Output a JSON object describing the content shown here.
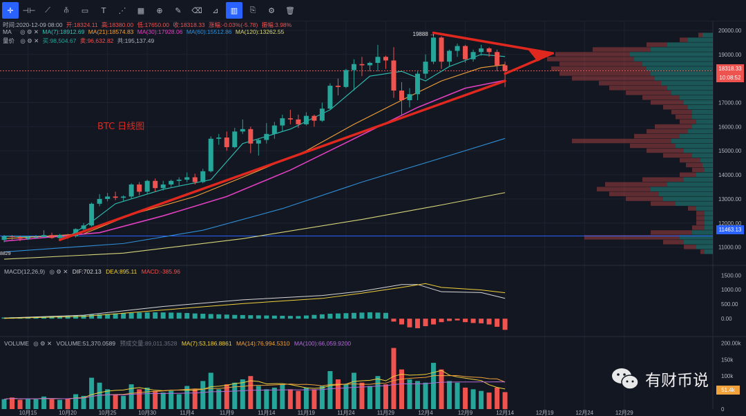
{
  "toolbar": {
    "icons": [
      "crosshair-icon",
      "hline-icon",
      "trendline-icon",
      "pitchfork-icon",
      "rectangle-icon",
      "text-icon",
      "pattern-icon",
      "ruler-icon",
      "zoom-icon",
      "brush-icon",
      "eraser-icon",
      "measure-icon",
      "bars-icon",
      "copy-icon",
      "settings-icon",
      "trash-icon"
    ]
  },
  "header": {
    "line1": {
      "time": "时间:2020-12-09 08:00",
      "open": "开:18324.11",
      "high": "高:18380.00",
      "low": "低:17650.00",
      "close": "收:18318.33",
      "change": "涨幅:-0.03%(-5.78)",
      "amplitude": "振幅:3.98%"
    },
    "ma_title": "MA",
    "ma": {
      "ma7": "MA(7):18912.69",
      "ma21": "MA(21):18574.83",
      "ma30": "MA(30):17928.06",
      "ma60": "MA(60):15512.86",
      "ma120": "MA(120):13262.55"
    },
    "vol_title": "量价",
    "vol": {
      "buy": "买:98,504.67",
      "sell": "卖:96,632.82",
      "total": "共:195,137.49"
    }
  },
  "annotation": "BTC  日线图",
  "price_labels": {
    "current": "18318.33",
    "countdown": "10:08:52",
    "level": "11463.13",
    "high_marker": "19888",
    "low_marker": "8829"
  },
  "macd": {
    "title": "MACD(12,26,9)",
    "dif": "DIF:702.13",
    "dea": "DEA:895.11",
    "macd": "MACD:-385.96"
  },
  "volume": {
    "title": "VOLUME",
    "value": "VOLUME:51,370.0589",
    "turnover": "预成交量:89,011.3528",
    "ma7": "MA(7):53,186.8861",
    "ma14": "MA(14):76,994.5310",
    "ma100": "MA(100):66,059.9200",
    "last_label": "51.4k"
  },
  "logo": "有财币说",
  "colors": {
    "up": "#26a69a",
    "down": "#ef5350",
    "bg": "#131722",
    "trend": "#e0281e",
    "ma7": "#2ec4b6",
    "ma21": "#f2a23a",
    "ma30": "#e040c0",
    "ma60": "#2f8fd8",
    "ma120": "#d7d77a"
  },
  "chart_data": [
    {
      "type": "candlestick",
      "title": "BTC  日线图",
      "x_labels": [
        "10月15",
        "10月20",
        "10月25",
        "10月30",
        "11月4",
        "11月9",
        "11月14",
        "11月19",
        "11月24",
        "11月29",
        "12月4",
        "12月9",
        "12月14",
        "12月19",
        "12月24",
        "12月29"
      ],
      "y_ticks": [
        11000,
        12000,
        13000,
        14000,
        15000,
        16000,
        17000,
        18000,
        19000,
        20000
      ],
      "ylim": [
        10300,
        20400
      ],
      "start_date": "2020-10-12",
      "candles": [
        [
          11300,
          11500,
          11200,
          11450
        ],
        [
          11450,
          11500,
          11300,
          11420
        ],
        [
          11420,
          11480,
          11250,
          11350
        ],
        [
          11350,
          11450,
          11300,
          11400
        ],
        [
          11400,
          11500,
          11350,
          11420
        ],
        [
          11420,
          11700,
          11400,
          11500
        ],
        [
          11500,
          11600,
          11350,
          11380
        ],
        [
          11380,
          11550,
          11300,
          11500
        ],
        [
          11500,
          11550,
          11350,
          11450
        ],
        [
          11450,
          11780,
          11400,
          11750
        ],
        [
          11750,
          12000,
          11650,
          11900
        ],
        [
          11900,
          12850,
          11850,
          12800
        ],
        [
          12800,
          13200,
          12700,
          13000
        ],
        [
          13000,
          13250,
          12900,
          13100
        ],
        [
          13100,
          13300,
          12950,
          13050
        ],
        [
          13050,
          13150,
          12900,
          13100
        ],
        [
          13100,
          13650,
          13000,
          13600
        ],
        [
          13600,
          13700,
          13150,
          13300
        ],
        [
          13300,
          13800,
          13200,
          13750
        ],
        [
          13750,
          13850,
          13300,
          13450
        ],
        [
          13450,
          13750,
          13350,
          13600
        ],
        [
          13600,
          13800,
          13500,
          13750
        ],
        [
          13750,
          13900,
          13550,
          13800
        ],
        [
          13800,
          14100,
          13700,
          13900
        ],
        [
          13900,
          14050,
          13600,
          13700
        ],
        [
          13700,
          14250,
          13650,
          14150
        ],
        [
          14150,
          15600,
          14100,
          15500
        ],
        [
          15500,
          15700,
          15250,
          15550
        ],
        [
          15550,
          15800,
          15000,
          15150
        ],
        [
          15150,
          15950,
          15100,
          15800
        ],
        [
          15800,
          16300,
          15700,
          15900
        ],
        [
          15900,
          16000,
          14900,
          15300
        ],
        [
          15300,
          15500,
          14800,
          15450
        ],
        [
          15450,
          16150,
          15300,
          15700
        ],
        [
          15700,
          16200,
          15500,
          16050
        ],
        [
          16050,
          16500,
          15800,
          16350
        ],
        [
          16350,
          16700,
          16100,
          16300
        ],
        [
          16300,
          16500,
          15950,
          16100
        ],
        [
          16100,
          16600,
          16050,
          16450
        ],
        [
          16450,
          16500,
          16000,
          16250
        ],
        [
          16250,
          17000,
          16200,
          16750
        ],
        [
          16750,
          17800,
          16700,
          17700
        ],
        [
          17700,
          18000,
          17300,
          17650
        ],
        [
          17650,
          18400,
          17600,
          18350
        ],
        [
          18350,
          18800,
          17500,
          18600
        ],
        [
          18600,
          18900,
          18100,
          18550
        ],
        [
          18550,
          18700,
          18300,
          18650
        ],
        [
          18650,
          19400,
          18300,
          18900
        ],
        [
          18900,
          18950,
          18400,
          18750
        ],
        [
          18750,
          19300,
          17200,
          17500
        ],
        [
          17500,
          17850,
          16500,
          17100
        ],
        [
          17100,
          17600,
          16800,
          17350
        ],
        [
          17350,
          18300,
          17100,
          18200
        ],
        [
          18200,
          19000,
          18000,
          18700
        ],
        [
          18700,
          19888,
          18600,
          19700
        ],
        [
          19700,
          19750,
          18400,
          18700
        ],
        [
          18700,
          19200,
          18500,
          19150
        ],
        [
          19150,
          19450,
          18900,
          19350
        ],
        [
          19350,
          19400,
          18650,
          18800
        ],
        [
          18800,
          19200,
          18700,
          19100
        ],
        [
          19100,
          19400,
          18950,
          19250
        ],
        [
          19250,
          19300,
          18900,
          19100
        ],
        [
          19100,
          19200,
          18300,
          18550
        ],
        [
          18550,
          18700,
          17650,
          18318
        ]
      ],
      "ma_series": [
        {
          "name": "MA(7)",
          "color": "#2ec4b6",
          "values": [
            [
              0,
              11450
            ],
            [
              8,
              11420
            ],
            [
              11,
              12050
            ],
            [
              14,
              12800
            ],
            [
              20,
              13400
            ],
            [
              26,
              13800
            ],
            [
              30,
              15300
            ],
            [
              36,
              15900
            ],
            [
              41,
              16700
            ],
            [
              46,
              18100
            ],
            [
              50,
              18300
            ],
            [
              53,
              17900
            ],
            [
              56,
              18500
            ],
            [
              60,
              19000
            ],
            [
              63,
              18912
            ]
          ]
        },
        {
          "name": "MA(21)",
          "color": "#f2a23a",
          "values": [
            [
              0,
              11350
            ],
            [
              10,
              11550
            ],
            [
              16,
              12350
            ],
            [
              24,
              13100
            ],
            [
              30,
              13900
            ],
            [
              38,
              15000
            ],
            [
              44,
              16100
            ],
            [
              50,
              17100
            ],
            [
              55,
              17900
            ],
            [
              60,
              18450
            ],
            [
              63,
              18575
            ]
          ]
        },
        {
          "name": "MA(30)",
          "color": "#e040c0",
          "values": [
            [
              0,
              11250
            ],
            [
              12,
              11600
            ],
            [
              20,
              12300
            ],
            [
              28,
              13100
            ],
            [
              36,
              14200
            ],
            [
              44,
              15500
            ],
            [
              52,
              16800
            ],
            [
              58,
              17600
            ],
            [
              63,
              17928
            ]
          ]
        },
        {
          "name": "MA(60)",
          "color": "#2f8fd8",
          "values": [
            [
              0,
              10800
            ],
            [
              15,
              11150
            ],
            [
              25,
              11700
            ],
            [
              35,
              12600
            ],
            [
              45,
              13700
            ],
            [
              55,
              14700
            ],
            [
              63,
              15513
            ]
          ]
        },
        {
          "name": "MA(120)",
          "color": "#d7d77a",
          "values": [
            [
              0,
              10500
            ],
            [
              15,
              10750
            ],
            [
              30,
              11350
            ],
            [
              45,
              12150
            ],
            [
              55,
              12750
            ],
            [
              63,
              13263
            ]
          ]
        }
      ],
      "trendlines": [
        {
          "from": [
            7,
            11300
          ],
          "to": [
            63,
            17900
          ]
        },
        {
          "from": [
            54,
            19900
          ],
          "to": [
            69,
            19050
          ]
        },
        {
          "from": [
            63,
            18200
          ],
          "to": [
            69,
            19050
          ]
        }
      ],
      "volume_profile": [
        {
          "p": 19800,
          "buy": 0.05,
          "sell": 0.02
        },
        {
          "p": 19600,
          "buy": 0.12,
          "sell": 0.04
        },
        {
          "p": 19400,
          "buy": 0.22,
          "sell": 0.1
        },
        {
          "p": 19200,
          "buy": 0.3,
          "sell": 0.28
        },
        {
          "p": 19000,
          "buy": 0.4,
          "sell": 0.36
        },
        {
          "p": 18800,
          "buy": 0.38,
          "sell": 0.42
        },
        {
          "p": 18600,
          "buy": 0.34,
          "sell": 0.4
        },
        {
          "p": 18400,
          "buy": 0.32,
          "sell": 0.46
        },
        {
          "p": 18200,
          "buy": 0.3,
          "sell": 0.44
        },
        {
          "p": 18000,
          "buy": 0.28,
          "sell": 0.4
        },
        {
          "p": 17800,
          "buy": 0.25,
          "sell": 0.3
        },
        {
          "p": 17600,
          "buy": 0.22,
          "sell": 0.28
        },
        {
          "p": 17400,
          "buy": 0.2,
          "sell": 0.22
        },
        {
          "p": 17200,
          "buy": 0.16,
          "sell": 0.18
        },
        {
          "p": 17000,
          "buy": 0.14,
          "sell": 0.16
        },
        {
          "p": 16800,
          "buy": 0.12,
          "sell": 0.12
        },
        {
          "p": 16600,
          "buy": 0.1,
          "sell": 0.1
        },
        {
          "p": 16400,
          "buy": 0.1,
          "sell": 0.08
        },
        {
          "p": 16200,
          "buy": 0.08,
          "sell": 0.08
        },
        {
          "p": 16000,
          "buy": 0.1,
          "sell": 0.18
        },
        {
          "p": 15800,
          "buy": 0.12,
          "sell": 0.2
        },
        {
          "p": 15600,
          "buy": 0.16,
          "sell": 0.22
        },
        {
          "p": 15400,
          "buy": 0.2,
          "sell": 0.48
        },
        {
          "p": 15200,
          "buy": 0.18,
          "sell": 0.22
        },
        {
          "p": 15000,
          "buy": 0.14,
          "sell": 0.18
        },
        {
          "p": 14800,
          "buy": 0.1,
          "sell": 0.14
        },
        {
          "p": 14600,
          "buy": 0.06,
          "sell": 0.1
        },
        {
          "p": 14400,
          "buy": 0.05,
          "sell": 0.08
        },
        {
          "p": 14200,
          "buy": 0.04,
          "sell": 0.06
        },
        {
          "p": 14000,
          "buy": 0.08,
          "sell": 0.08
        },
        {
          "p": 13800,
          "buy": 0.14,
          "sell": 0.2
        },
        {
          "p": 13600,
          "buy": 0.22,
          "sell": 0.3
        },
        {
          "p": 13400,
          "buy": 0.3,
          "sell": 0.26
        },
        {
          "p": 13200,
          "buy": 0.26,
          "sell": 0.24
        },
        {
          "p": 13000,
          "buy": 0.24,
          "sell": 0.18
        },
        {
          "p": 12800,
          "buy": 0.18,
          "sell": 0.12
        },
        {
          "p": 12600,
          "buy": 0.08,
          "sell": 0.04
        },
        {
          "p": 12400,
          "buy": 0.04,
          "sell": 0.04
        },
        {
          "p": 12200,
          "buy": 0.04,
          "sell": 0.04
        },
        {
          "p": 12000,
          "buy": 0.04,
          "sell": 0.04
        },
        {
          "p": 11800,
          "buy": 0.04,
          "sell": 0.06
        },
        {
          "p": 11600,
          "buy": 0.1,
          "sell": 0.2
        },
        {
          "p": 11400,
          "buy": 0.16,
          "sell": 0.46
        },
        {
          "p": 11200,
          "buy": 0.14,
          "sell": 0.1
        },
        {
          "p": 11000,
          "buy": 0.08,
          "sell": 0.06
        },
        {
          "p": 10800,
          "buy": 0.04,
          "sell": 0.02
        }
      ]
    },
    {
      "type": "bar",
      "title": "MACD(12,26,9)",
      "y_ticks": [
        0,
        500,
        1000,
        1500
      ],
      "ylim": [
        -450,
        1650
      ],
      "histogram": [
        40,
        45,
        50,
        55,
        60,
        70,
        75,
        80,
        90,
        110,
        120,
        140,
        150,
        160,
        180,
        190,
        200,
        210,
        215,
        220,
        215,
        210,
        205,
        195,
        180,
        170,
        160,
        150,
        140,
        130,
        125,
        120,
        115,
        110,
        105,
        100,
        95,
        90,
        110,
        130,
        150,
        170,
        180,
        190,
        200,
        210,
        220,
        210,
        200,
        -100,
        -200,
        -300,
        -330,
        -260,
        -200,
        -120,
        -80,
        -60,
        -120,
        -150,
        -160,
        -200,
        -280,
        -386
      ],
      "dif": [
        [
          0,
          20
        ],
        [
          10,
          120
        ],
        [
          20,
          420
        ],
        [
          30,
          650
        ],
        [
          40,
          800
        ],
        [
          45,
          950
        ],
        [
          50,
          1180
        ],
        [
          52,
          1180
        ],
        [
          55,
          930
        ],
        [
          60,
          900
        ],
        [
          63,
          702
        ]
      ],
      "dea": [
        [
          0,
          10
        ],
        [
          10,
          80
        ],
        [
          20,
          300
        ],
        [
          30,
          520
        ],
        [
          40,
          700
        ],
        [
          45,
          880
        ],
        [
          50,
          1080
        ],
        [
          53,
          1210
        ],
        [
          55,
          1080
        ],
        [
          60,
          990
        ],
        [
          63,
          895
        ]
      ]
    },
    {
      "type": "bar",
      "title": "VOLUME",
      "y_ticks": [
        0,
        "50k",
        "100k",
        "150k",
        "200.00k"
      ],
      "ylim": [
        0,
        205000
      ],
      "values": [
        30000,
        35000,
        28000,
        32000,
        30000,
        38000,
        30000,
        28000,
        32000,
        45000,
        40000,
        95000,
        80000,
        60000,
        45000,
        40000,
        75000,
        60000,
        65000,
        55000,
        50000,
        55000,
        45000,
        70000,
        60000,
        85000,
        110000,
        60000,
        75000,
        80000,
        90000,
        100000,
        70000,
        60000,
        65000,
        75000,
        60000,
        55000,
        65000,
        60000,
        70000,
        115000,
        90000,
        75000,
        110000,
        80000,
        70000,
        100000,
        75000,
        185000,
        120000,
        90000,
        85000,
        80000,
        140000,
        120000,
        85000,
        80000,
        65000,
        60000,
        55000,
        50000,
        65000,
        51370
      ]
    }
  ]
}
